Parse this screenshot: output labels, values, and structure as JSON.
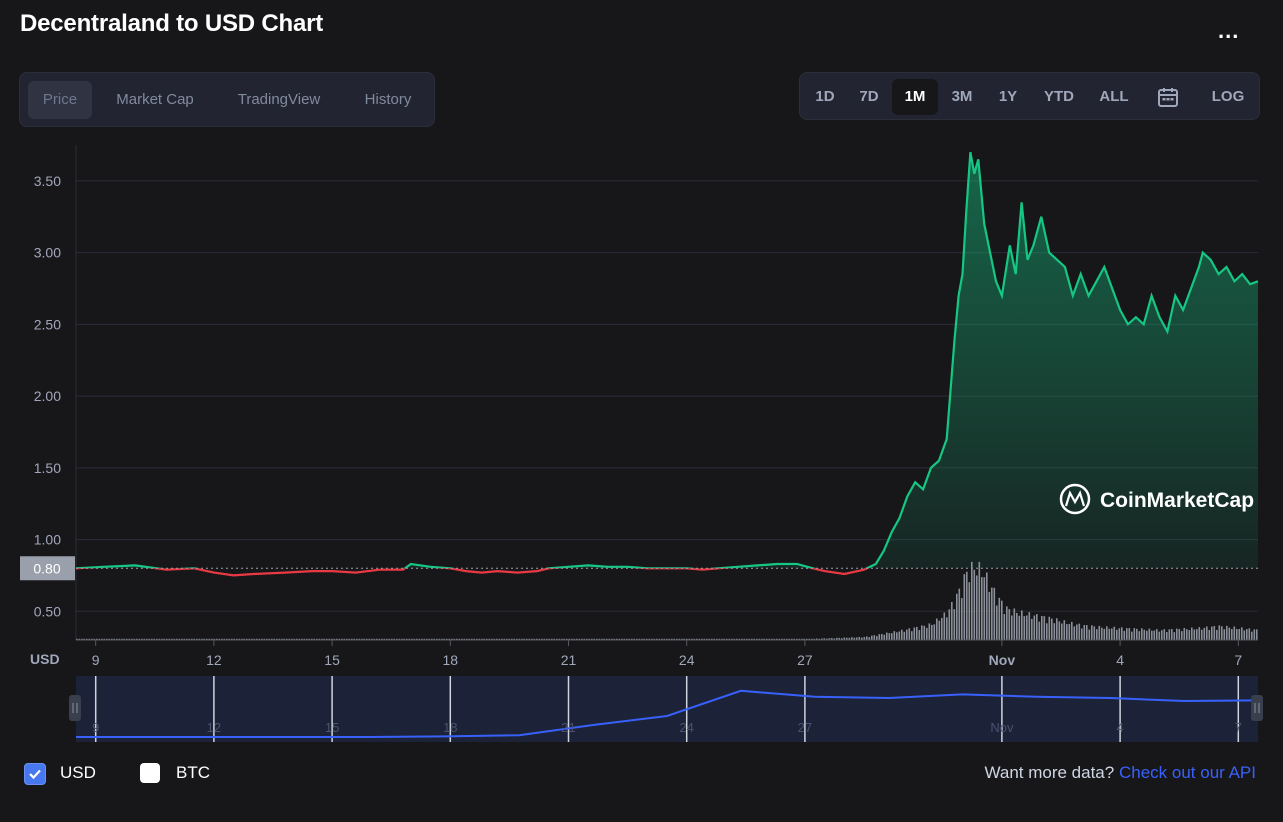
{
  "header": {
    "title": "Decentraland to USD Chart",
    "more_label": "..."
  },
  "tabs": [
    {
      "label": "Price",
      "active": true
    },
    {
      "label": "Market Cap",
      "active": false
    },
    {
      "label": "TradingView",
      "active": false
    },
    {
      "label": "History",
      "active": false
    }
  ],
  "ranges": [
    {
      "label": "1D"
    },
    {
      "label": "7D"
    },
    {
      "label": "1M",
      "active": true
    },
    {
      "label": "3M"
    },
    {
      "label": "1Y"
    },
    {
      "label": "YTD"
    },
    {
      "label": "ALL"
    },
    {
      "label": "",
      "icon": "calendar-icon"
    },
    {
      "label": "LOG"
    }
  ],
  "chart_data": {
    "type": "area",
    "currency_label": "USD",
    "current_price_label": "0.80",
    "watermark": "CoinMarketCap",
    "y_ticks": [
      "0.50",
      "1.00",
      "1.50",
      "2.00",
      "2.50",
      "3.00",
      "3.50"
    ],
    "ylim": [
      0.3,
      3.75
    ],
    "x_ticks": [
      "9",
      "12",
      "15",
      "18",
      "21",
      "24",
      "27",
      "Nov",
      "4",
      "7"
    ],
    "x_tick_days": [
      9,
      12,
      15,
      18,
      21,
      24,
      27,
      32,
      35,
      38
    ],
    "xlim": [
      8.5,
      38.5
    ],
    "reference_price": 0.8,
    "price_series": {
      "name": "Price",
      "x": [
        8.5,
        9.2,
        10.0,
        10.8,
        11.5,
        12.0,
        12.5,
        13.0,
        13.8,
        14.5,
        15.0,
        15.6,
        16.2,
        16.8,
        17.0,
        17.5,
        18.0,
        18.4,
        18.8,
        19.2,
        19.7,
        20.2,
        20.5,
        21.0,
        21.5,
        22.0,
        22.5,
        23.0,
        23.5,
        24.0,
        24.4,
        24.8,
        25.3,
        25.8,
        26.3,
        26.8,
        27.2,
        27.5,
        28.0,
        28.5,
        28.8,
        29.0,
        29.2,
        29.4,
        29.6,
        29.8,
        30.0,
        30.2,
        30.4,
        30.6,
        30.8,
        30.9,
        31.0,
        31.1,
        31.2,
        31.3,
        31.4,
        31.55,
        31.7,
        31.85,
        32.0,
        32.2,
        32.35,
        32.5,
        32.65,
        32.8,
        33.0,
        33.2,
        33.4,
        33.6,
        33.8,
        34.0,
        34.2,
        34.4,
        34.6,
        34.8,
        35.0,
        35.2,
        35.4,
        35.6,
        35.8,
        36.0,
        36.2,
        36.4,
        36.6,
        36.8,
        37.0,
        37.1,
        37.3,
        37.5,
        37.7,
        37.9,
        38.1,
        38.3,
        38.5
      ],
      "y": [
        0.8,
        0.81,
        0.82,
        0.79,
        0.8,
        0.77,
        0.75,
        0.76,
        0.77,
        0.78,
        0.78,
        0.77,
        0.79,
        0.79,
        0.83,
        0.81,
        0.8,
        0.78,
        0.77,
        0.78,
        0.77,
        0.78,
        0.8,
        0.81,
        0.82,
        0.81,
        0.81,
        0.8,
        0.8,
        0.8,
        0.79,
        0.8,
        0.81,
        0.82,
        0.83,
        0.83,
        0.8,
        0.78,
        0.76,
        0.79,
        0.83,
        0.92,
        1.05,
        1.15,
        1.3,
        1.4,
        1.35,
        1.5,
        1.55,
        1.7,
        2.4,
        2.7,
        2.85,
        3.3,
        3.7,
        3.55,
        3.65,
        3.2,
        3.0,
        2.8,
        2.7,
        3.05,
        2.85,
        3.35,
        2.95,
        3.05,
        3.25,
        3.0,
        2.95,
        2.9,
        2.7,
        2.85,
        2.7,
        2.8,
        2.9,
        2.75,
        2.6,
        2.5,
        2.55,
        2.5,
        2.7,
        2.55,
        2.45,
        2.7,
        2.6,
        2.75,
        2.9,
        3.0,
        2.95,
        2.85,
        2.9,
        2.8,
        2.85,
        2.78,
        2.8
      ]
    },
    "volume_series": {
      "name": "Volume",
      "x": [
        8.5,
        12,
        16,
        20,
        24,
        27,
        28.5,
        29.5,
        30.2,
        30.6,
        30.9,
        31.1,
        31.3,
        31.5,
        31.7,
        31.9,
        32.1,
        32.4,
        32.8,
        33.2,
        33.6,
        34,
        34.5,
        35,
        36,
        37,
        37.5,
        38,
        38.5
      ],
      "relative": [
        0.01,
        0.01,
        0.01,
        0.01,
        0.01,
        0.01,
        0.03,
        0.1,
        0.16,
        0.28,
        0.5,
        0.7,
        0.75,
        0.7,
        0.55,
        0.42,
        0.32,
        0.28,
        0.25,
        0.22,
        0.18,
        0.15,
        0.13,
        0.12,
        0.1,
        0.12,
        0.14,
        0.12,
        0.1
      ]
    },
    "navigator_relative": [
      0.05,
      0.05,
      0.05,
      0.05,
      0.05,
      0.06,
      0.08,
      0.25,
      0.4,
      0.82,
      0.72,
      0.7,
      0.76,
      0.72,
      0.7,
      0.65,
      0.66
    ]
  },
  "footer": {
    "usd_label": "USD",
    "btc_label": "BTC",
    "more_data_text": "Want more data?",
    "api_link": "Check out our API"
  },
  "colors": {
    "background": "#17171a",
    "up": "#16c784",
    "down": "#ea3943",
    "grid": "#2a2d36",
    "navigator_line": "#3861fb",
    "navigator_bg": "#1c2238"
  }
}
